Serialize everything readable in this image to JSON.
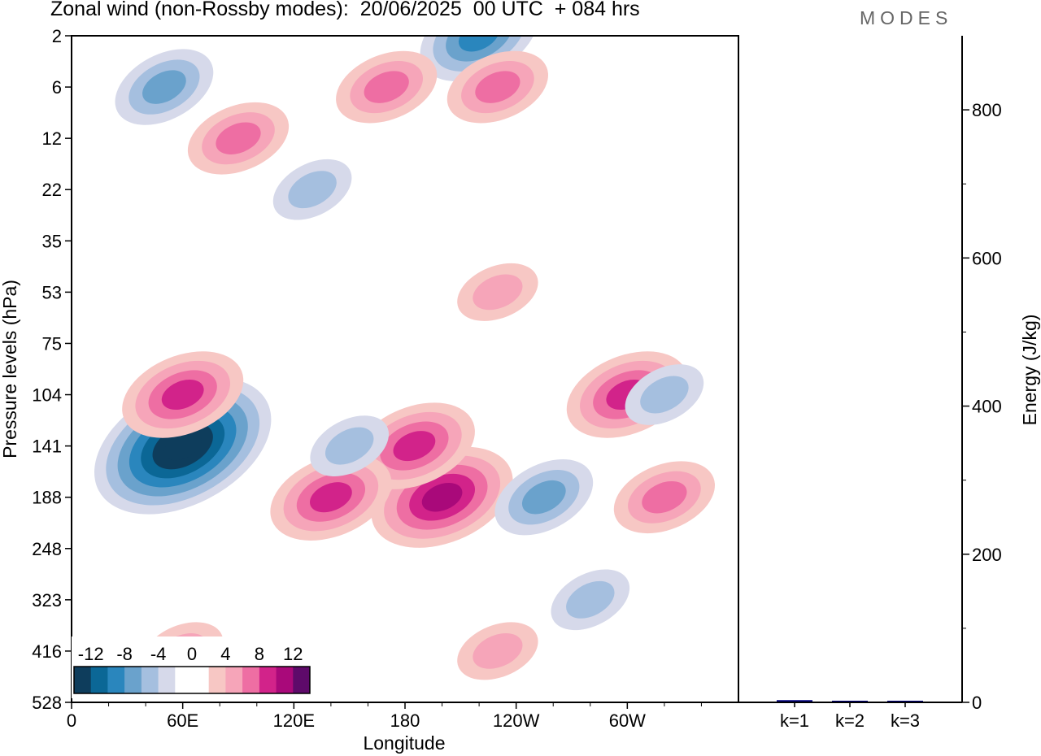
{
  "header": {
    "title": "Zonal wind (non-Rossby modes):  20/06/2025  00 UTC  + 084 hrs",
    "brand": "MODES"
  },
  "chart_data": [
    {
      "type": "heatmap",
      "title": "Zonal wind (non-Rossby modes):  20/06/2025  00 UTC  + 084 hrs",
      "xlabel": "Longitude",
      "ylabel": "Pressure levels (hPa)",
      "x_ticks": [
        "0",
        "60E",
        "120E",
        "180",
        "120W",
        "60W"
      ],
      "x_tick_values": [
        0,
        60,
        120,
        180,
        240,
        300
      ],
      "xlim": [
        0,
        360
      ],
      "y_ticks": [
        "2",
        "6",
        "12",
        "22",
        "35",
        "53",
        "75",
        "104",
        "141",
        "188",
        "248",
        "323",
        "416",
        "528"
      ],
      "colorbar": {
        "labels": [
          "-12",
          "-8",
          "-4",
          "0",
          "4",
          "8",
          "12"
        ],
        "colors": [
          "#0e3d5c",
          "#0b6796",
          "#2a86bd",
          "#6aa2cc",
          "#a5bfdf",
          "#d6d9ea",
          "#ffffff",
          "#ffffff",
          "#f7c7c4",
          "#f6a5b9",
          "#ee6ea3",
          "#d2238a",
          "#a9097a",
          "#5e0a6a"
        ]
      },
      "features": [
        {
          "lon": 60,
          "level": "141",
          "value": -14
        },
        {
          "lon": 60,
          "level": "104",
          "value": 9
        },
        {
          "lon": 200,
          "level": "188",
          "value": 10
        },
        {
          "lon": 185,
          "level": "141",
          "value": 8
        },
        {
          "lon": 140,
          "level": "188",
          "value": 8
        },
        {
          "lon": 300,
          "level": "104",
          "value": 8
        },
        {
          "lon": 320,
          "level": "188",
          "value": 6
        },
        {
          "lon": 50,
          "level": "6",
          "value": -6
        },
        {
          "lon": 220,
          "level": "2",
          "value": -8
        },
        {
          "lon": 130,
          "level": "22",
          "value": -4
        },
        {
          "lon": 150,
          "level": "141",
          "value": -5
        },
        {
          "lon": 255,
          "level": "188",
          "value": -6
        },
        {
          "lon": 320,
          "level": "104",
          "value": -5
        },
        {
          "lon": 90,
          "level": "12",
          "value": 6
        },
        {
          "lon": 170,
          "level": "6",
          "value": 7
        },
        {
          "lon": 230,
          "level": "6",
          "value": 6
        },
        {
          "lon": 230,
          "level": "53",
          "value": 4
        },
        {
          "lon": 280,
          "level": "323",
          "value": -5
        },
        {
          "lon": 60,
          "level": "416",
          "value": 4
        },
        {
          "lon": 230,
          "level": "416",
          "value": 4
        }
      ]
    },
    {
      "type": "bar",
      "categories": [
        "k=1",
        "k=2",
        "k=3"
      ],
      "values": [
        3,
        2,
        1
      ],
      "ylabel": "Energy (J/kg)",
      "ylim": [
        0,
        900
      ],
      "y_ticks": [
        0,
        200,
        400,
        600,
        800
      ],
      "bar_color": "#000080"
    }
  ]
}
